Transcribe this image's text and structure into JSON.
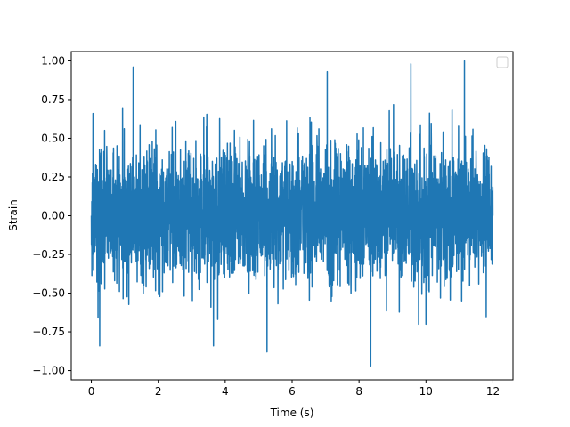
{
  "chart_data": {
    "type": "line",
    "title": "",
    "xlabel": "Time (s)",
    "ylabel": "Strain",
    "xlim": [
      -0.6,
      12.6
    ],
    "ylim": [
      -1.06,
      1.06
    ],
    "xticks": [
      0,
      2,
      4,
      6,
      8,
      10,
      12
    ],
    "xtick_labels": [
      "0",
      "2",
      "4",
      "6",
      "8",
      "10",
      "12"
    ],
    "yticks": [
      -1.0,
      -0.75,
      -0.5,
      -0.25,
      0.0,
      0.25,
      0.5,
      0.75,
      1.0
    ],
    "ytick_labels": [
      "−1.00",
      "−0.75",
      "−0.50",
      "−0.25",
      "0.00",
      "0.25",
      "0.50",
      "0.75",
      "1.00"
    ],
    "grid": false,
    "legend": {
      "placement": "top-right",
      "entries": []
    },
    "series": [
      {
        "color": "#1f77b4",
        "x_range": [
          0,
          12
        ],
        "description_points": {
          "x": [
            0.0,
            0.05,
            0.2,
            0.25,
            1.25,
            3.65,
            5.25,
            7.05,
            8.35,
            9.55,
            11.15,
            12.0
          ],
          "y": [
            0.0,
            0.66,
            -0.66,
            -0.84,
            0.96,
            -0.84,
            -0.88,
            0.93,
            -0.97,
            0.98,
            1.0,
            0.0
          ]
        },
        "typical_envelope": [
          -0.5,
          0.55
        ]
      }
    ]
  }
}
